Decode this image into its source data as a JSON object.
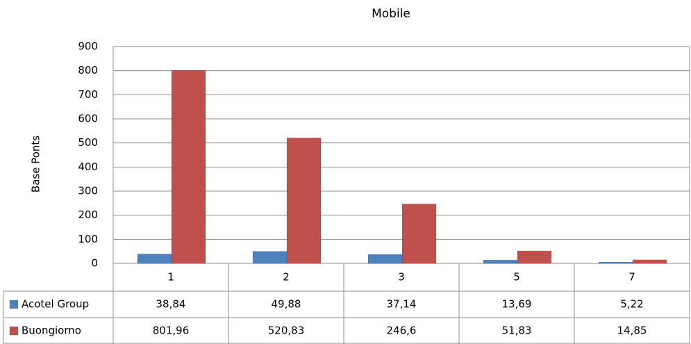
{
  "chart_data": {
    "type": "bar",
    "title": "Mobile",
    "y_label": "Base Ponts",
    "categories": [
      "1",
      "2",
      "3",
      "5",
      "7"
    ],
    "series": [
      {
        "name": "Acotel Group",
        "color": "#4f81bd",
        "values": [
          38.84,
          49.88,
          37.14,
          13.69,
          5.22
        ],
        "value_labels": [
          "38,84",
          "49,88",
          "37,14",
          "13,69",
          "5,22"
        ]
      },
      {
        "name": "Buongiorno",
        "color": "#c0504d",
        "values": [
          801.96,
          520.83,
          246.6,
          51.83,
          14.85
        ],
        "value_labels": [
          "801,96",
          "520,83",
          "246,6",
          "51,83",
          "14,85"
        ]
      }
    ],
    "ylim": [
      0,
      900
    ],
    "yticks": [
      0,
      100,
      200,
      300,
      400,
      500,
      600,
      700,
      800,
      900
    ],
    "grid": true
  }
}
